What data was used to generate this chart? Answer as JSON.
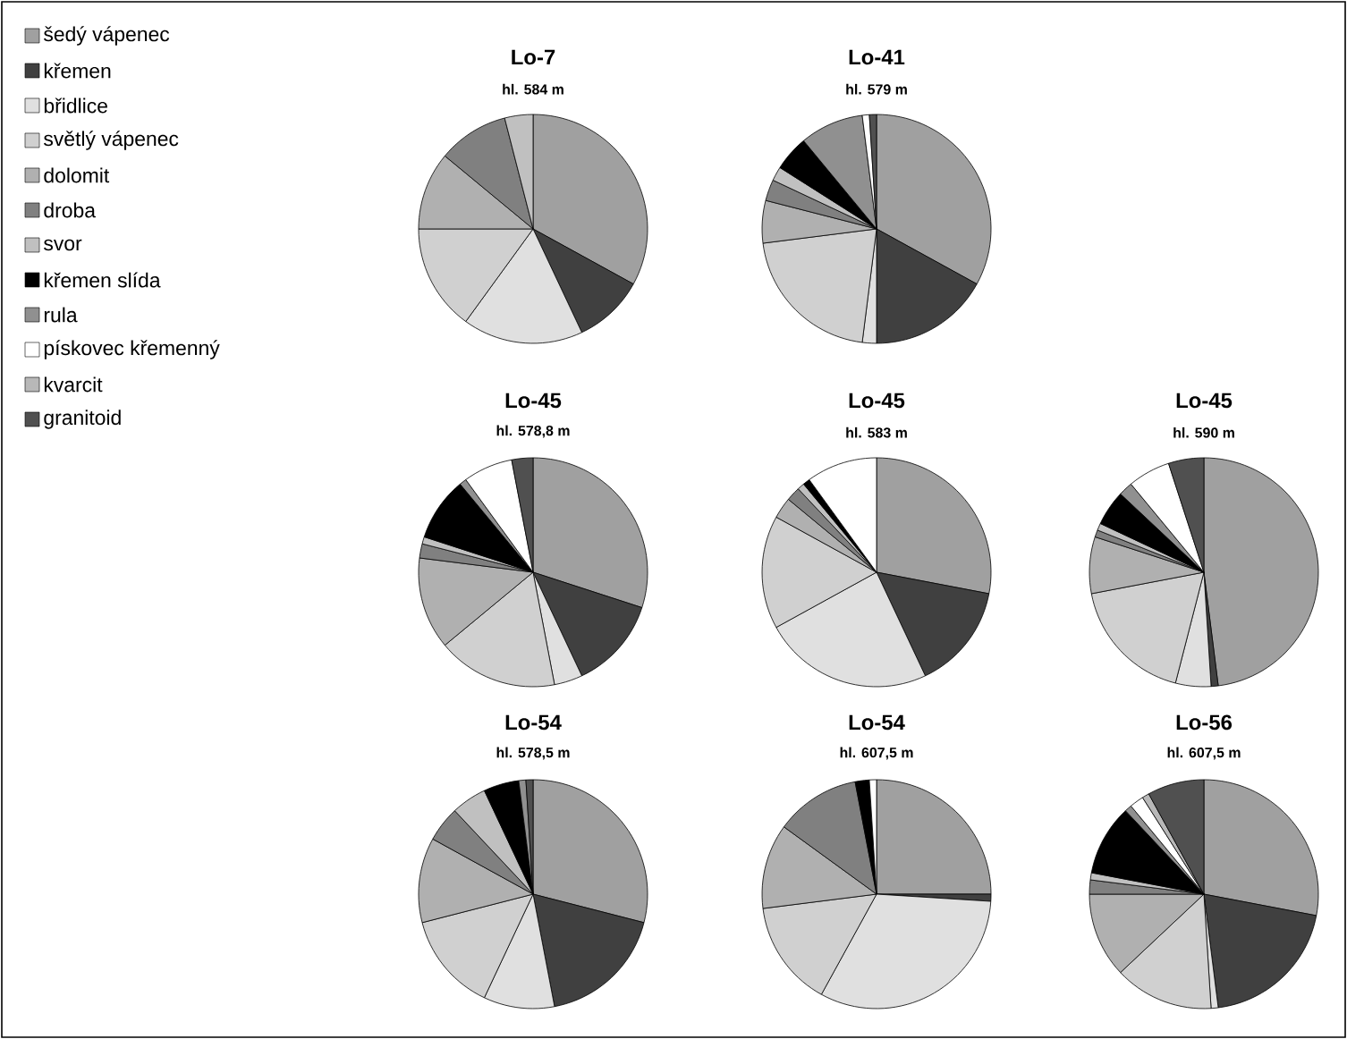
{
  "chart_data": [
    {
      "type": "pie",
      "title": "Lo-7",
      "subtitle": "hl. 584 m",
      "legend": "left",
      "categories": [
        "šedý vápenec",
        "křemen",
        "břidlice",
        "světlý vápenec",
        "dolomit",
        "droba",
        "svor",
        "křemen slída",
        "rula",
        "pískovec křemenný",
        "kvarcit",
        "granitoid"
      ],
      "colors": [
        "#a0a0a0",
        "#404040",
        "#e0e0e0",
        "#d0d0d0",
        "#b0b0b0",
        "#808080",
        "#c0c0c0",
        "#000000",
        "#909090",
        "#ffffff",
        "#b8b8b8",
        "#505050"
      ],
      "values": [
        33,
        10,
        17,
        15,
        11,
        10,
        4,
        0,
        0,
        0,
        0,
        0
      ]
    },
    {
      "type": "pie",
      "title": "Lo-41",
      "subtitle": "hl. 579 m",
      "categories": [
        null,
        null,
        null,
        null,
        null,
        null,
        null,
        null,
        null,
        null,
        null,
        null
      ],
      "colors": [
        "#a0a0a0",
        "#404040",
        "#e0e0e0",
        "#d0d0d0",
        "#b0b0b0",
        "#808080",
        "#c0c0c0",
        "#000000",
        "#909090",
        "#ffffff",
        "#b8b8b8",
        "#505050"
      ],
      "values": [
        33,
        17,
        2,
        21,
        6,
        3,
        2,
        5,
        9,
        1,
        0,
        1
      ]
    },
    {
      "type": "pie",
      "title": "Lo-45",
      "subtitle": "hl. 578,8 m",
      "categories": [
        null,
        null,
        null,
        null,
        null,
        null,
        null,
        null,
        null,
        null,
        null,
        null
      ],
      "colors": [
        "#a0a0a0",
        "#404040",
        "#e0e0e0",
        "#d0d0d0",
        "#b0b0b0",
        "#808080",
        "#c0c0c0",
        "#000000",
        "#909090",
        "#ffffff",
        "#b8b8b8",
        "#505050"
      ],
      "values": [
        30,
        13,
        4,
        17,
        13,
        2,
        1,
        9,
        1,
        7,
        0,
        3
      ]
    },
    {
      "type": "pie",
      "title": "Lo-45",
      "subtitle": "hl. 583 m",
      "categories": [
        null,
        null,
        null,
        null,
        null,
        null,
        null,
        null,
        null,
        null,
        null,
        null
      ],
      "colors": [
        "#a0a0a0",
        "#404040",
        "#e0e0e0",
        "#d0d0d0",
        "#b0b0b0",
        "#808080",
        "#c0c0c0",
        "#000000",
        "#909090",
        "#ffffff",
        "#b8b8b8",
        "#505050"
      ],
      "values": [
        28,
        15,
        24,
        16,
        3,
        2,
        1,
        1,
        0,
        10,
        0,
        0
      ]
    },
    {
      "type": "pie",
      "title": "Lo-45",
      "subtitle": "hl. 590 m",
      "categories": [
        null,
        null,
        null,
        null,
        null,
        null,
        null,
        null,
        null,
        null,
        null,
        null
      ],
      "colors": [
        "#a0a0a0",
        "#404040",
        "#e0e0e0",
        "#d0d0d0",
        "#b0b0b0",
        "#808080",
        "#c0c0c0",
        "#000000",
        "#909090",
        "#ffffff",
        "#b8b8b8",
        "#505050"
      ],
      "values": [
        48,
        1,
        5,
        18,
        8,
        1,
        1,
        5,
        2,
        6,
        0,
        5
      ]
    },
    {
      "type": "pie",
      "title": "Lo-54",
      "subtitle": "hl. 578,5 m",
      "categories": [
        null,
        null,
        null,
        null,
        null,
        null,
        null,
        null,
        null,
        null,
        null,
        null
      ],
      "colors": [
        "#a0a0a0",
        "#404040",
        "#e0e0e0",
        "#d0d0d0",
        "#b0b0b0",
        "#808080",
        "#c0c0c0",
        "#000000",
        "#909090",
        "#ffffff",
        "#b8b8b8",
        "#505050"
      ],
      "values": [
        29,
        18,
        10,
        14,
        12,
        5,
        5,
        5,
        1,
        0,
        0,
        1
      ]
    },
    {
      "type": "pie",
      "title": "Lo-54",
      "subtitle": "hl. 607,5 m",
      "categories": [
        null,
        null,
        null,
        null,
        null,
        null,
        null,
        null,
        null,
        null,
        null,
        null
      ],
      "colors": [
        "#a0a0a0",
        "#404040",
        "#e0e0e0",
        "#d0d0d0",
        "#b0b0b0",
        "#808080",
        "#c0c0c0",
        "#000000",
        "#909090",
        "#ffffff",
        "#b8b8b8",
        "#505050"
      ],
      "values": [
        25,
        1,
        32,
        15,
        12,
        12,
        0,
        2,
        0,
        1,
        0,
        0
      ]
    },
    {
      "type": "pie",
      "title": "Lo-56",
      "subtitle": "hl. 607,5 m",
      "categories": [
        null,
        null,
        null,
        null,
        null,
        null,
        null,
        null,
        null,
        null,
        null,
        null
      ],
      "colors": [
        "#a0a0a0",
        "#404040",
        "#e0e0e0",
        "#d0d0d0",
        "#b0b0b0",
        "#808080",
        "#c0c0c0",
        "#000000",
        "#909090",
        "#ffffff",
        "#b8b8b8",
        "#505050"
      ],
      "values": [
        28,
        20,
        1,
        14,
        12,
        2,
        1,
        10,
        1,
        2,
        1,
        8
      ]
    }
  ]
}
